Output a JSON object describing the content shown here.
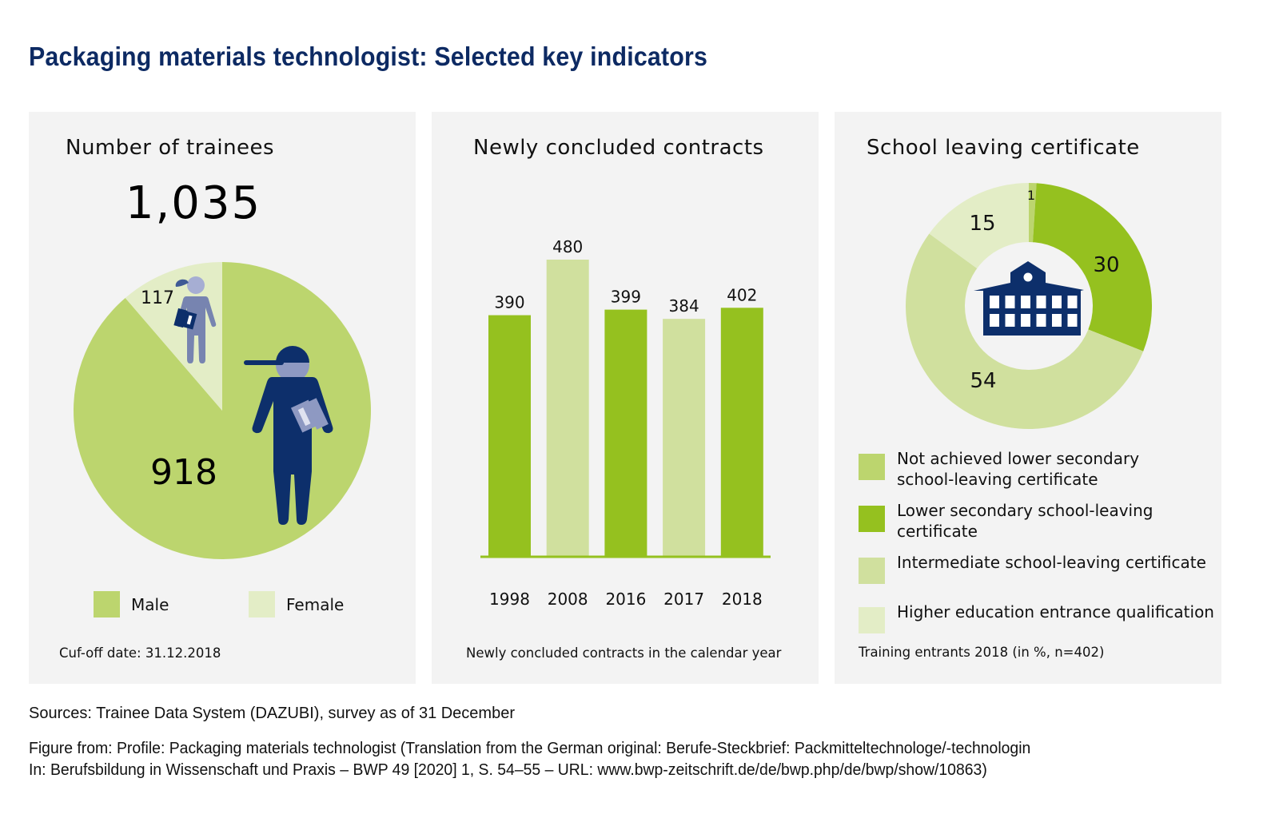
{
  "title": "Packaging materials technologist: Selected key indicators",
  "colors": {
    "title": "#0d2a63",
    "panel_bg": "#f3f3f3",
    "male": "#bcd56e",
    "female": "#e3edc6",
    "bar_dark": "#95c11f",
    "bar_light": "#d0e09e",
    "icon_navy": "#0d2f6b",
    "icon_lavender": "#8e99c2"
  },
  "trainees": {
    "title": "Number of trainees",
    "total": "1,035",
    "legend": [
      {
        "label": "Male",
        "color": "#bcd56e"
      },
      {
        "label": "Female",
        "color": "#e3edc6"
      }
    ],
    "footnote": "Cuf-off date: 31.12.2018"
  },
  "contracts": {
    "title": "Newly concluded contracts",
    "footnote": "Newly concluded contracts in the calendar year"
  },
  "school": {
    "title": "School leaving certificate",
    "legend": [
      {
        "label_lines": [
          "Not achieved lower secondary",
          "school-leaving certificate"
        ],
        "color": "#bcd56e"
      },
      {
        "label_lines": [
          "Lower secondary school-leaving",
          "certificate"
        ],
        "color": "#95c11f"
      },
      {
        "label_lines": [
          "Intermediate school-leaving certificate"
        ],
        "color": "#d0e09e"
      },
      {
        "label_lines": [
          "Higher education entrance qualification"
        ],
        "color": "#e3edc6"
      }
    ],
    "footnote": "Training entrants 2018 (in %, n=402)"
  },
  "sources": {
    "line1": "Sources: Trainee Data System (DAZUBI), survey as of 31 December",
    "line2": "Figure from: Profile: Packaging materials technologist (Translation from the German original: Berufe-Steckbrief: Packmitteltechnologe/-technologin",
    "line3": "In: Berufsbildung in Wissenschaft und Praxis – BWP 49 [2020] 1, S. 54–55 – URL: www.bwp-zeitschrift.de/de/bwp.php/de/bwp/show/10863)"
  },
  "chart_data": [
    {
      "type": "pie",
      "title": "Number of trainees",
      "total": 1035,
      "categories": [
        "Male",
        "Female"
      ],
      "values": [
        918,
        117
      ],
      "colors": [
        "#bcd56e",
        "#e3edc6"
      ],
      "labels": [
        "918",
        "117"
      ],
      "legend": "bottom"
    },
    {
      "type": "bar",
      "title": "Newly concluded contracts",
      "categories": [
        "1998",
        "2008",
        "2016",
        "2017",
        "2018"
      ],
      "values": [
        390,
        480,
        399,
        384,
        402
      ],
      "colors": [
        "#95c11f",
        "#d0e09e",
        "#95c11f",
        "#d0e09e",
        "#95c11f"
      ],
      "xlabel": "Newly concluded contracts in the calendar year",
      "ylabel": "",
      "ylim": [
        0,
        480
      ],
      "grid": false
    },
    {
      "type": "pie",
      "subtype": "donut",
      "title": "School leaving certificate",
      "unit": "%",
      "n": 402,
      "categories": [
        "Not achieved lower secondary school-leaving certificate",
        "Lower secondary school-leaving certificate",
        "Intermediate school-leaving certificate",
        "Higher education entrance qualification"
      ],
      "values": [
        1,
        30,
        54,
        15
      ],
      "colors": [
        "#bcd56e",
        "#95c11f",
        "#d0e09e",
        "#e3edc6"
      ],
      "legend": "bottom"
    }
  ]
}
